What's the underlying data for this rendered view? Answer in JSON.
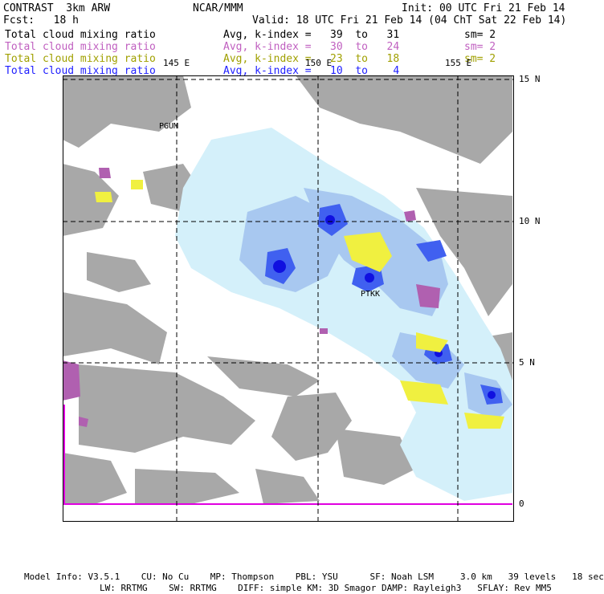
{
  "header": {
    "title": "CONTRAST  3km ARW",
    "center": "NCAR/MMM",
    "init": "Init: 00 UTC Fri 21 Feb 14",
    "fcst": "Fcst:   18 h",
    "valid": "Valid: 18 UTC Fri 21 Feb 14 (04 ChT Sat 22 Feb 14)"
  },
  "legend": [
    {
      "field": "Total cloud mixing ratio",
      "range": "Avg, k-index =   39  to   31",
      "sm": "sm= 2",
      "color": "#000000"
    },
    {
      "field": "Total cloud mixing ratio",
      "range": "Avg, k-index =   30  to   24",
      "sm": "sm= 2",
      "color": "#c060c0"
    },
    {
      "field": "Total cloud mixing ratio",
      "range": "Avg, k-index =   23  to   18",
      "sm": "sm= 2",
      "color": "#a0a000"
    },
    {
      "field": "Total cloud mixing ratio",
      "range": "Avg, k-index =   10  to    4",
      "sm": "",
      "color": "#2020ff"
    }
  ],
  "map": {
    "lon_labels": [
      "145 E",
      "150 E",
      "155 E"
    ],
    "lat_labels": [
      "15 N",
      "10 N",
      "5 N",
      "0"
    ],
    "stations": [
      "PGUM",
      "PTKK"
    ],
    "colors": {
      "land_gray": "#a8a8a8",
      "cloud_light": "#d4f0fa",
      "cloud_mid": "#a8c8f0",
      "cloud_dark": "#4060f0",
      "cloud_core": "#1010e0",
      "magenta": "#b060b0",
      "yellow": "#f0f040"
    }
  },
  "footer": {
    "line1": "Model Info: V3.5.1    CU: No Cu    MP: Thompson    PBL: YSU      SF: Noah LSM     3.0 km   39 levels   18 sec",
    "line2": "LW: RRTMG    SW: RRTMG    DIFF: simple KM: 3D Smagor DAMP: Rayleigh3   SFLAY: Rev MM5"
  }
}
